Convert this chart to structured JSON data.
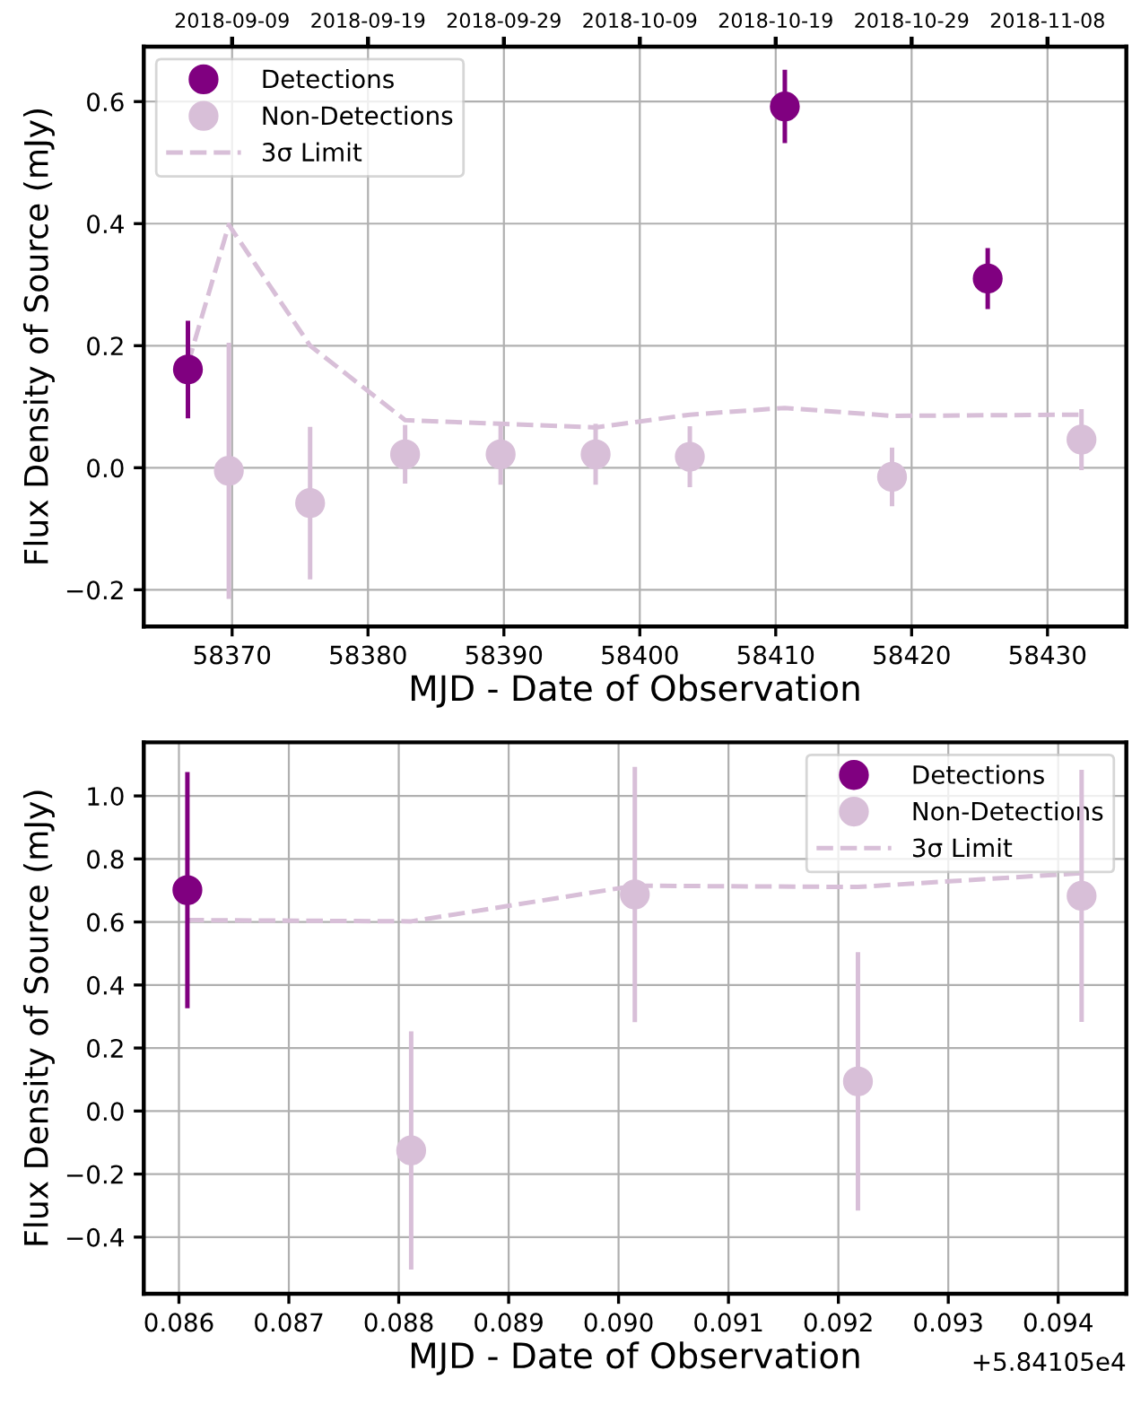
{
  "chart_data": [
    {
      "type": "scatter",
      "xlabel": "MJD - Date of Observation",
      "ylabel": "Flux Density of Source (mJy)",
      "xlim": [
        58363.5,
        58435.8
      ],
      "xticks": [
        58370,
        58380,
        58390,
        58400,
        58410,
        58420,
        58430
      ],
      "x2lim": [
        "2018-09-02T12:00",
        "2018-11-13T19:12"
      ],
      "x2ticks": [
        "2018-09-09",
        "2018-09-19",
        "2018-09-29",
        "2018-10-09",
        "2018-10-19",
        "2018-10-29",
        "2018-11-08"
      ],
      "ylim": [
        -0.26,
        0.69
      ],
      "yticks": [
        {
          "value": -0.2,
          "label": "−0.2"
        },
        {
          "value": 0,
          "label": "0.0"
        },
        0.2,
        0.4,
        0.6
      ],
      "grid": true,
      "legend": "top left",
      "marker": "circle",
      "series": [
        {
          "name": "Detections",
          "color": "#800080",
          "x": [
            58366.75,
            58410.67,
            58425.6
          ],
          "values": [
            0.161,
            0.592,
            0.31
          ],
          "errors": [
            0.08,
            0.06,
            0.05
          ]
        },
        {
          "name": "Non-Detections",
          "color": "#d8bfd8",
          "x": [
            58369.76,
            58375.74,
            58382.73,
            58389.76,
            58396.75,
            58403.68,
            58418.56,
            58432.5
          ],
          "values": [
            -0.005,
            -0.058,
            0.022,
            0.022,
            0.022,
            0.018,
            -0.015,
            0.046
          ],
          "errors": [
            0.21,
            0.125,
            0.048,
            0.05,
            0.05,
            0.05,
            0.048,
            0.05
          ]
        },
        {
          "name": "3σ Limit",
          "type": "line",
          "marker": "none",
          "color": "#d8bfd8",
          "line_style": "dashed",
          "x": [
            58366.75,
            58369.76,
            58375.74,
            58382.73,
            58389.76,
            58396.75,
            58403.68,
            58410.67,
            58418.56,
            58425.6,
            58432.5
          ],
          "values": [
            0.17,
            0.398,
            0.2,
            0.078,
            0.072,
            0.066,
            0.087,
            0.098,
            0.085,
            0.086,
            0.087
          ]
        }
      ]
    },
    {
      "type": "scatter",
      "xlabel": "MJD - Date of Observation",
      "ylabel": "Flux Density of Source (mJy)",
      "xlim": [
        0.08568,
        0.09462
      ],
      "xticks": [
        0.086,
        0.087,
        0.088,
        0.089,
        {
          "value": 0.09,
          "label": "0.090"
        },
        0.091,
        0.092,
        0.093,
        0.094
      ],
      "ylim": [
        -0.58,
        1.17
      ],
      "yticks": [
        {
          "value": -0.4,
          "label": "−0.4"
        },
        {
          "value": -0.2,
          "label": "−0.2"
        },
        {
          "value": 0,
          "label": "0.0"
        },
        0.2,
        0.4,
        0.6,
        0.8,
        {
          "value": 1,
          "label": "1.0"
        }
      ],
      "grid": true,
      "legend": "top right",
      "marker": "circle",
      "annotations": [
        "+5.84105e4"
      ],
      "series": [
        {
          "name": "Detections",
          "color": "#800080",
          "x": [
            0.086077
          ],
          "values": [
            0.701
          ],
          "errors": [
            0.375
          ]
        },
        {
          "name": "Non-Detections",
          "color": "#d8bfd8",
          "x": [
            0.088113,
            0.090148,
            0.092178,
            0.094213
          ],
          "values": [
            -0.125,
            0.687,
            0.094,
            0.683
          ],
          "errors": [
            0.378,
            0.405,
            0.41,
            0.4
          ]
        },
        {
          "name": "3σ Limit",
          "type": "line",
          "marker": "none",
          "color": "#d8bfd8",
          "line_style": "dashed",
          "x": [
            0.086077,
            0.088113,
            0.090148,
            0.092178,
            0.094213
          ],
          "values": [
            0.606,
            0.602,
            0.715,
            0.711,
            0.755
          ]
        }
      ]
    }
  ]
}
